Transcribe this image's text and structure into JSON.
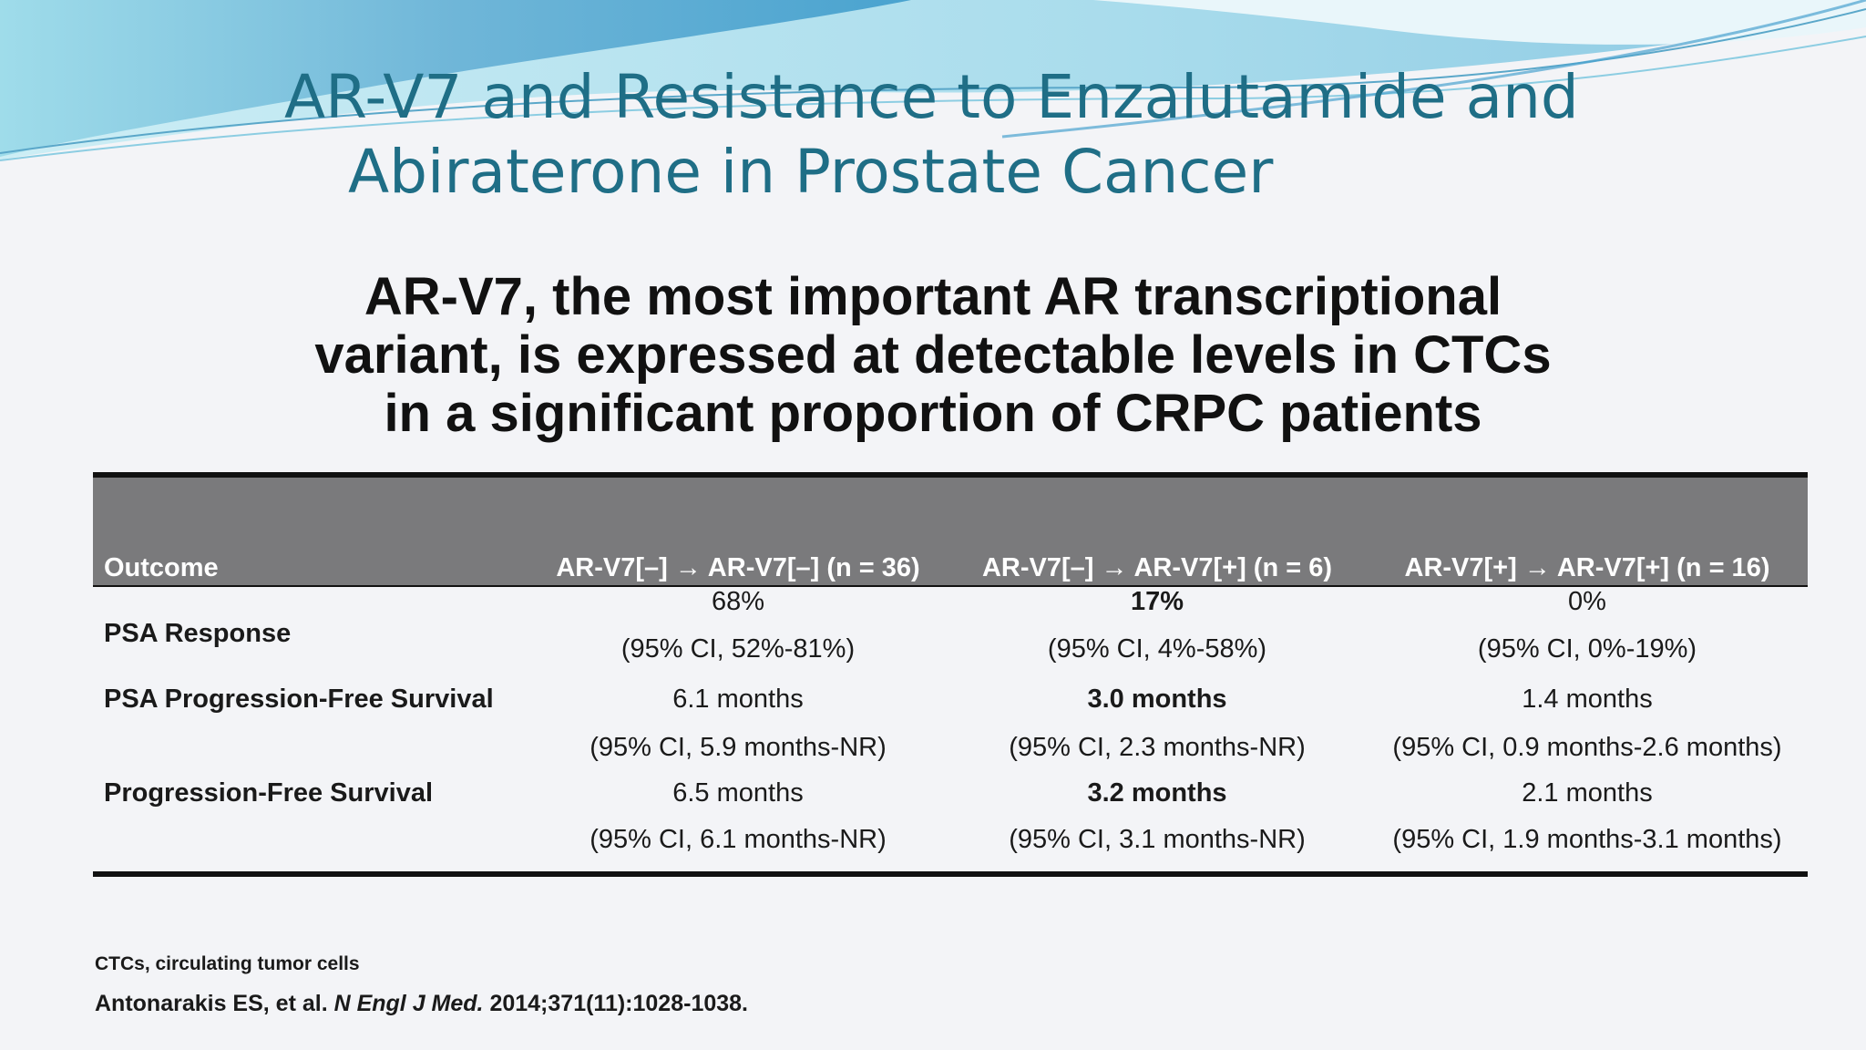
{
  "title": {
    "line1": "AR-V7 and Resistance to Enzalutamide  and",
    "line2": "Abiraterone in Prostate Cancer"
  },
  "subtitle": {
    "line1": "AR-V7, the most important AR transcriptional",
    "line2": "variant, is expressed at detectable levels in CTCs",
    "line3": "in a significant proportion of CRPC patients"
  },
  "table": {
    "headers": [
      "Outcome",
      "AR-V7[–] → AR-V7[–] (n = 36)",
      "AR-V7[–] → AR-V7[+] (n = 6)",
      "AR-V7[+] → AR-V7[+] (n = 16)"
    ],
    "rows": [
      {
        "label": "PSA Response",
        "values": [
          "68%",
          "17%",
          "0%"
        ],
        "ci": [
          "(95% CI, 52%-81%)",
          "(95% CI, 4%-58%)",
          "(95% CI, 0%-19%)"
        ]
      },
      {
        "label": "PSA Progression-Free Survival",
        "values": [
          "6.1 months",
          "3.0 months",
          "1.4 months"
        ],
        "ci": [
          "(95% CI, 5.9 months-NR)",
          "(95% CI, 2.3 months-NR)",
          "(95% CI, 0.9 months-2.6 months)"
        ]
      },
      {
        "label": "Progression-Free Survival",
        "values": [
          "6.5 months",
          "3.2 months",
          "2.1 months"
        ],
        "ci": [
          "(95% CI, 6.1 months-NR)",
          "(95% CI, 3.1 months-NR)",
          "(95% CI, 1.9 months-3.1 months)"
        ]
      }
    ]
  },
  "footnote": "CTCs, circulating tumor cells",
  "citation": {
    "authors": "Antonarakis ES, et al. ",
    "journal": "N Engl J Med.",
    "details": " 2014;371(11):1028-1038."
  },
  "colors": {
    "title": "#1f6e86",
    "header_bg": "#7a7a7c",
    "background": "#f3f4f7",
    "wave_light": "#bfe6f2",
    "wave_dark": "#6fb6d8"
  }
}
